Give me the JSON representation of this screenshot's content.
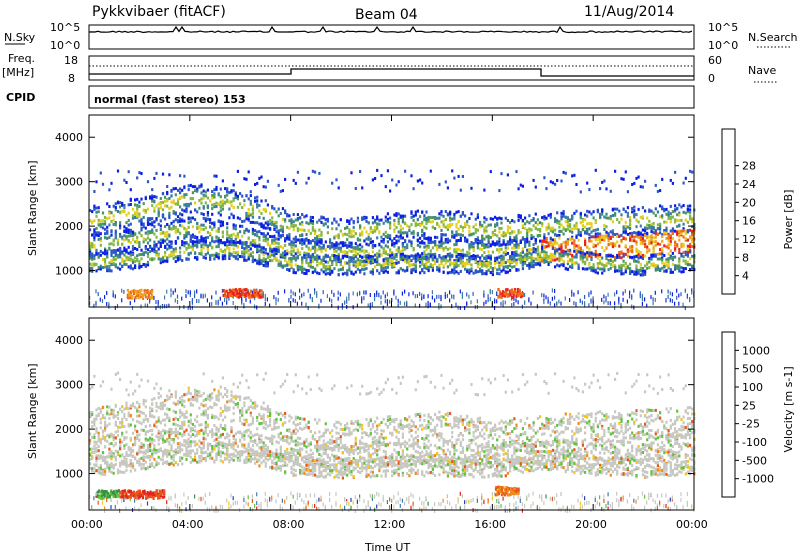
{
  "header": {
    "station": "Pykkvibaer (fitACF)",
    "beam": "Beam 04",
    "date": "11/Aug/2014"
  },
  "strip_labels": {
    "nsky": "N.Sky",
    "nsearch": "N.Search",
    "freq": "Freq.",
    "freq_unit": "[MHz]",
    "nave": "Nave",
    "cpid": "CPID",
    "cpid_value": "normal (fast stereo) 153"
  },
  "strip_ticks": {
    "noise_left": [
      "10^5",
      "10^0"
    ],
    "noise_right": [
      "10^5",
      "10^0"
    ],
    "freq_left": [
      "18",
      "8"
    ],
    "nave_right": [
      "60",
      "0"
    ]
  },
  "chart_data": [
    {
      "type": "heatmap",
      "title": "",
      "xlabel": "Time UT",
      "ylabel": "Slant Range [km]",
      "x_ticks": [
        "00:00",
        "04:00",
        "08:00",
        "12:00",
        "16:00",
        "20:00",
        "00:00"
      ],
      "y_ticks": [
        "1000",
        "2000",
        "3000",
        "4000"
      ],
      "ylim": [
        180,
        4500
      ],
      "colorbar": {
        "label": "Power [dB]",
        "ticks": [
          "4",
          "8",
          "12",
          "16",
          "20",
          "24",
          "28"
        ],
        "colors": [
          "#0b1ee6",
          "#2c57c7",
          "#3c7ea0",
          "#49965f",
          "#84b846",
          "#e4d021",
          "#f0a320",
          "#ee6a1a",
          "#e8231a"
        ]
      }
    },
    {
      "type": "heatmap",
      "title": "",
      "xlabel": "Time UT",
      "ylabel": "Slant Range [km]",
      "x_ticks": [
        "00:00",
        "04:00",
        "08:00",
        "12:00",
        "16:00",
        "20:00",
        "00:00"
      ],
      "y_ticks": [
        "1000",
        "2000",
        "3000",
        "4000"
      ],
      "ylim": [
        180,
        4500
      ],
      "colorbar": {
        "label": "Velocity [m s-1]",
        "ticks": [
          "1000",
          "500",
          "100",
          "25",
          "-25",
          "-100",
          "-500",
          "-1000"
        ],
        "colors": [
          "#2a3cb4",
          "#3f7ab8",
          "#3a8c4a",
          "#62c340",
          "#c8c8c2",
          "#f3c419",
          "#f08a1f",
          "#e8581c",
          "#e4231c"
        ]
      }
    }
  ]
}
